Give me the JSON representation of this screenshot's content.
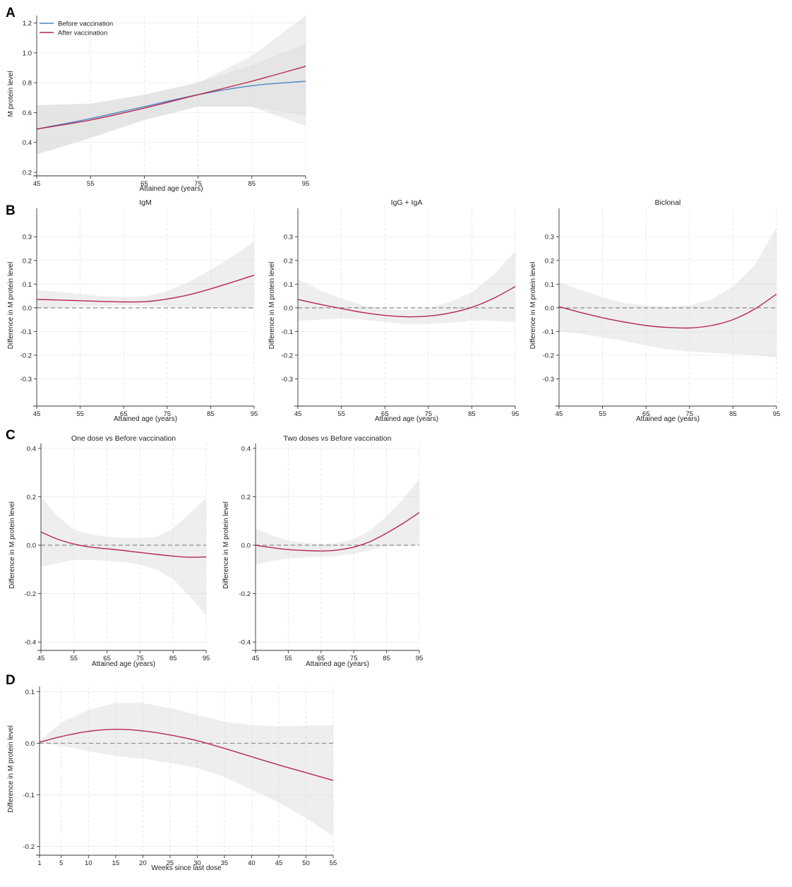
{
  "panels": {
    "A": "A",
    "B": "B",
    "C": "C",
    "D": "D"
  },
  "chart_data": [
    {
      "id": "A",
      "type": "line",
      "title": "",
      "xlabel": "Attained age (years)",
      "ylabel": "M protein level",
      "xlim": [
        45,
        95
      ],
      "ylim": [
        0.2,
        1.25
      ],
      "xticks": [
        45,
        55,
        65,
        75,
        85,
        95
      ],
      "yticks": [
        0.2,
        0.4,
        0.6,
        0.8,
        1.0,
        1.2
      ],
      "ytick_labels": [
        "0.2",
        "0.4",
        "0.6",
        "0.8",
        "1.0",
        "1.2"
      ],
      "legend": [
        "Before vaccination",
        "After vaccination"
      ],
      "series": [
        {
          "name": "Before vaccination",
          "color": "#4a86c8",
          "x": [
            45,
            55,
            65,
            75,
            85,
            95
          ],
          "y": [
            0.49,
            0.56,
            0.64,
            0.72,
            0.78,
            0.81
          ],
          "lower": [
            0.32,
            0.43,
            0.55,
            0.64,
            0.64,
            0.58
          ],
          "upper": [
            0.65,
            0.66,
            0.72,
            0.8,
            0.92,
            1.06
          ]
        },
        {
          "name": "After vaccination",
          "color": "#b5284e",
          "x": [
            45,
            55,
            65,
            75,
            85,
            95
          ],
          "y": [
            0.49,
            0.55,
            0.63,
            0.72,
            0.81,
            0.91
          ],
          "lower": [
            0.32,
            0.43,
            0.55,
            0.64,
            0.64,
            0.51
          ],
          "upper": [
            0.65,
            0.66,
            0.72,
            0.8,
            0.98,
            1.25
          ]
        }
      ]
    },
    {
      "id": "B1",
      "type": "line",
      "title": "IgM",
      "xlabel": "Attained age (years)",
      "ylabel": "Difference in M protein level",
      "xlim": [
        45,
        95
      ],
      "ylim": [
        -0.4,
        0.42
      ],
      "xticks": [
        45,
        55,
        65,
        75,
        85,
        95
      ],
      "yticks": [
        -0.3,
        -0.2,
        -0.1,
        0.0,
        0.1,
        0.2,
        0.3
      ],
      "ytick_labels": [
        "-0.3",
        "-0.2",
        "-0.1",
        "0.0",
        "0.1",
        "0.2",
        "0.3"
      ],
      "reference_line": 0,
      "series": [
        {
          "name": "Difference",
          "color": "#b5284e",
          "x": [
            45,
            50,
            55,
            60,
            65,
            70,
            75,
            80,
            85,
            90,
            95
          ],
          "y": [
            0.035,
            0.033,
            0.03,
            0.027,
            0.025,
            0.026,
            0.037,
            0.055,
            0.08,
            0.108,
            0.138
          ],
          "lower": [
            -0.005,
            0.0,
            0.005,
            0.008,
            0.01,
            0.008,
            0.005,
            0.003,
            0.0,
            0.0,
            -0.005
          ],
          "upper": [
            0.075,
            0.068,
            0.058,
            0.05,
            0.045,
            0.048,
            0.07,
            0.11,
            0.16,
            0.215,
            0.28
          ]
        }
      ]
    },
    {
      "id": "B2",
      "type": "line",
      "title": "IgG + IgA",
      "xlabel": "Attained age (years)",
      "ylabel": "Difference in M protein level",
      "xlim": [
        45,
        95
      ],
      "ylim": [
        -0.4,
        0.42
      ],
      "xticks": [
        45,
        55,
        65,
        75,
        85,
        95
      ],
      "yticks": [
        -0.3,
        -0.2,
        -0.1,
        0.0,
        0.1,
        0.2,
        0.3
      ],
      "ytick_labels": [
        "-0.3",
        "-0.2",
        "-0.1",
        "0.0",
        "0.1",
        "0.2",
        "0.3"
      ],
      "reference_line": 0,
      "series": [
        {
          "name": "Difference",
          "color": "#b5284e",
          "x": [
            45,
            50,
            55,
            60,
            65,
            70,
            75,
            80,
            85,
            90,
            95
          ],
          "y": [
            0.035,
            0.015,
            -0.003,
            -0.02,
            -0.032,
            -0.038,
            -0.035,
            -0.022,
            0.002,
            0.04,
            0.09
          ],
          "lower": [
            -0.055,
            -0.05,
            -0.045,
            -0.05,
            -0.06,
            -0.068,
            -0.068,
            -0.063,
            -0.055,
            -0.055,
            -0.06
          ],
          "upper": [
            0.12,
            0.075,
            0.04,
            0.01,
            -0.005,
            -0.01,
            -0.002,
            0.025,
            0.065,
            0.14,
            0.24
          ]
        }
      ]
    },
    {
      "id": "B3",
      "type": "line",
      "title": "Biclonal",
      "xlabel": "Attained age (years)",
      "ylabel": "Difference in M protein level",
      "xlim": [
        45,
        95
      ],
      "ylim": [
        -0.4,
        0.42
      ],
      "xticks": [
        45,
        55,
        65,
        75,
        85,
        95
      ],
      "yticks": [
        -0.3,
        -0.2,
        -0.1,
        0.0,
        0.1,
        0.2,
        0.3
      ],
      "ytick_labels": [
        "-0.3",
        "-0.2",
        "-0.1",
        "0.0",
        "0.1",
        "0.2",
        "0.3"
      ],
      "reference_line": 0,
      "series": [
        {
          "name": "Difference",
          "color": "#b5284e",
          "x": [
            45,
            50,
            55,
            60,
            65,
            70,
            75,
            80,
            85,
            90,
            95
          ],
          "y": [
            0.005,
            -0.02,
            -0.042,
            -0.06,
            -0.075,
            -0.083,
            -0.085,
            -0.075,
            -0.05,
            -0.005,
            0.058
          ],
          "lower": [
            -0.1,
            -0.11,
            -0.125,
            -0.14,
            -0.16,
            -0.175,
            -0.185,
            -0.19,
            -0.195,
            -0.2,
            -0.21
          ],
          "upper": [
            0.11,
            0.075,
            0.045,
            0.02,
            0.01,
            0.005,
            0.01,
            0.035,
            0.09,
            0.18,
            0.34
          ]
        }
      ]
    },
    {
      "id": "C1",
      "type": "line",
      "title": "One dose vs Before vaccination",
      "xlabel": "Attained age (years)",
      "ylabel": "Difference in M protein level",
      "xlim": [
        45,
        95
      ],
      "ylim": [
        -0.42,
        0.42
      ],
      "xticks": [
        45,
        55,
        65,
        75,
        85,
        95
      ],
      "yticks": [
        -0.4,
        -0.2,
        0.0,
        0.2,
        0.4
      ],
      "ytick_labels": [
        "-0.4",
        "-0.2",
        "0.0",
        "0.2",
        "0.4"
      ],
      "reference_line": 0,
      "series": [
        {
          "name": "Difference",
          "color": "#b5284e",
          "x": [
            45,
            50,
            55,
            60,
            65,
            70,
            75,
            80,
            85,
            90,
            95
          ],
          "y": [
            0.055,
            0.025,
            0.005,
            -0.008,
            -0.015,
            -0.022,
            -0.03,
            -0.038,
            -0.045,
            -0.05,
            -0.048
          ],
          "lower": [
            -0.09,
            -0.075,
            -0.06,
            -0.06,
            -0.065,
            -0.07,
            -0.08,
            -0.1,
            -0.14,
            -0.21,
            -0.29
          ],
          "upper": [
            0.2,
            0.12,
            0.065,
            0.045,
            0.035,
            0.03,
            0.03,
            0.035,
            0.07,
            0.13,
            0.195
          ]
        }
      ]
    },
    {
      "id": "C2",
      "type": "line",
      "title": "Two doses vs Before vaccination",
      "xlabel": "Attained age (years)",
      "ylabel": "Difference in M protein level",
      "xlim": [
        45,
        95
      ],
      "ylim": [
        -0.42,
        0.42
      ],
      "xticks": [
        45,
        55,
        65,
        75,
        85,
        95
      ],
      "yticks": [
        -0.4,
        -0.2,
        0.0,
        0.2,
        0.4
      ],
      "ytick_labels": [
        "-0.4",
        "-0.2",
        "0.0",
        "0.2",
        "0.4"
      ],
      "reference_line": 0,
      "series": [
        {
          "name": "Difference",
          "color": "#b5284e",
          "x": [
            45,
            50,
            55,
            60,
            65,
            70,
            75,
            80,
            85,
            90,
            95
          ],
          "y": [
            0.0,
            -0.01,
            -0.018,
            -0.022,
            -0.024,
            -0.02,
            -0.008,
            0.015,
            0.05,
            0.09,
            0.135
          ],
          "lower": [
            -0.08,
            -0.065,
            -0.055,
            -0.05,
            -0.048,
            -0.045,
            -0.035,
            -0.02,
            -0.005,
            0.0,
            0.0
          ],
          "upper": [
            0.07,
            0.04,
            0.02,
            0.01,
            0.005,
            0.01,
            0.025,
            0.06,
            0.12,
            0.19,
            0.275
          ]
        }
      ]
    },
    {
      "id": "D",
      "type": "line",
      "title": "",
      "xlabel": "Weeks since last dose",
      "ylabel": "Difference in M protein level",
      "xlim": [
        1,
        55
      ],
      "ylim": [
        -0.21,
        0.11
      ],
      "xticks": [
        1,
        5,
        10,
        15,
        20,
        25,
        30,
        35,
        40,
        45,
        50,
        55
      ],
      "yticks": [
        -0.2,
        -0.1,
        0.0,
        0.1
      ],
      "ytick_labels": [
        "-0.2",
        "-0.1",
        "0.0",
        "0.1"
      ],
      "reference_line": 0,
      "series": [
        {
          "name": "Difference",
          "color": "#b5284e",
          "x": [
            1,
            5,
            10,
            15,
            20,
            25,
            30,
            35,
            40,
            45,
            50,
            55
          ],
          "y": [
            0.002,
            0.013,
            0.023,
            0.027,
            0.024,
            0.016,
            0.005,
            -0.01,
            -0.026,
            -0.042,
            -0.057,
            -0.072
          ],
          "lower": [
            0.0,
            -0.005,
            -0.015,
            -0.025,
            -0.03,
            -0.038,
            -0.048,
            -0.065,
            -0.09,
            -0.115,
            -0.145,
            -0.18
          ],
          "upper": [
            0.005,
            0.04,
            0.065,
            0.078,
            0.078,
            0.068,
            0.055,
            0.042,
            0.035,
            0.033,
            0.034,
            0.035
          ]
        }
      ]
    }
  ]
}
